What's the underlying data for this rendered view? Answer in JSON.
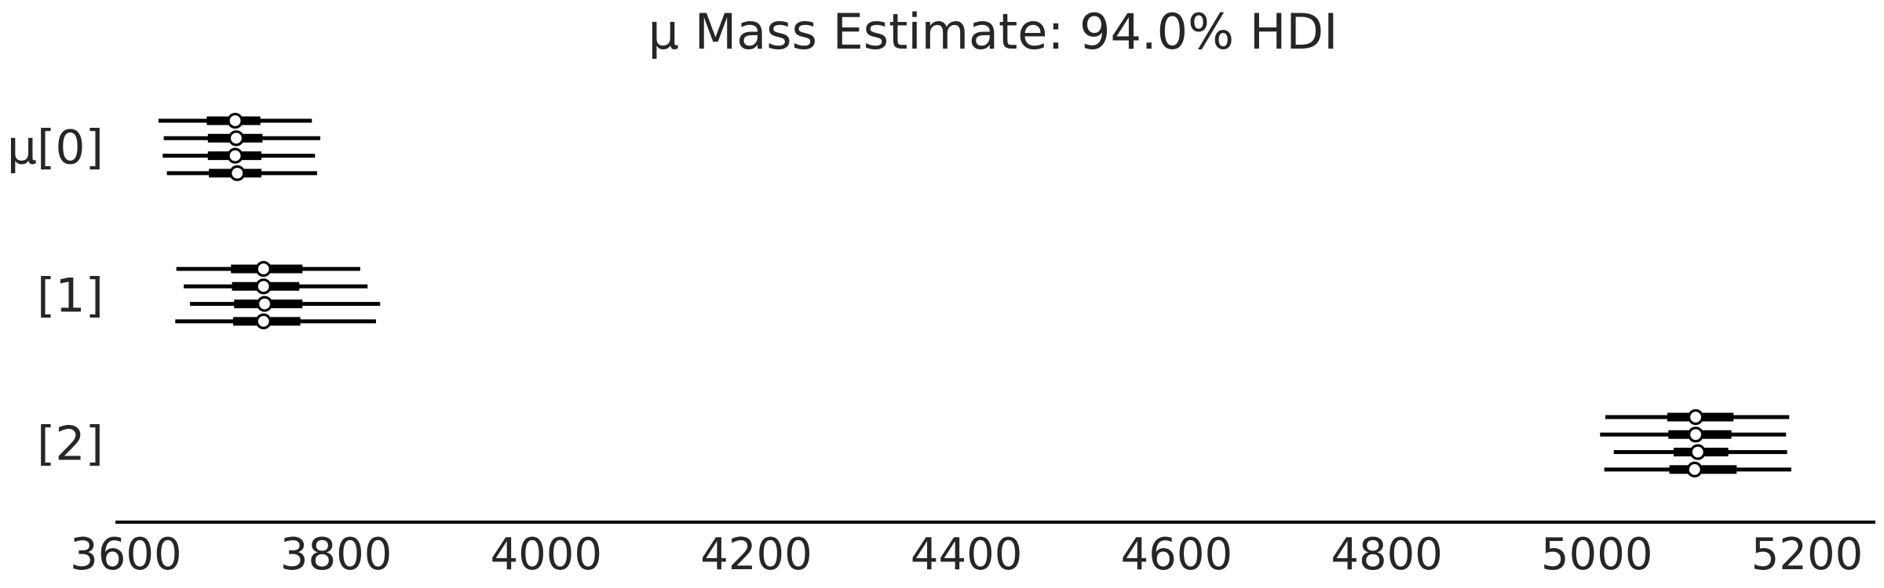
{
  "chart_data": {
    "type": "forest",
    "title": "μ Mass Estimate: 94.0% HDI",
    "xlabel": "",
    "ylabel": "",
    "xlim": [
      3590,
      5265
    ],
    "xticks": [
      3600,
      3800,
      4000,
      4200,
      4400,
      4600,
      4800,
      5000,
      5200
    ],
    "xtick_labels": [
      "3600",
      "3800",
      "4000",
      "4200",
      "4400",
      "4600",
      "4800",
      "5000",
      "5200"
    ],
    "grid": false,
    "legend": "none",
    "colors": {
      "line": "#000000",
      "marker_face": "#ffffff",
      "text": "#262626"
    },
    "groups": [
      {
        "label": "μ[0]",
        "chains": [
          {
            "hdi94": [
              3631,
              3777
            ],
            "iqr": [
              3677,
              3728
            ],
            "median": 3704
          },
          {
            "hdi94": [
              3636,
              3785
            ],
            "iqr": [
              3678,
              3730
            ],
            "median": 3705
          },
          {
            "hdi94": [
              3635,
              3780
            ],
            "iqr": [
              3678,
              3729
            ],
            "median": 3704
          },
          {
            "hdi94": [
              3639,
              3782
            ],
            "iqr": [
              3679,
              3729
            ],
            "median": 3706
          }
        ]
      },
      {
        "label": "[1]",
        "chains": [
          {
            "hdi94": [
              3648,
              3823
            ],
            "iqr": [
              3700,
              3768
            ],
            "median": 3731
          },
          {
            "hdi94": [
              3655,
              3830
            ],
            "iqr": [
              3701,
              3765
            ],
            "median": 3731
          },
          {
            "hdi94": [
              3661,
              3842
            ],
            "iqr": [
              3703,
              3768
            ],
            "median": 3732
          },
          {
            "hdi94": [
              3647,
              3838
            ],
            "iqr": [
              3702,
              3766
            ],
            "median": 3731
          }
        ]
      },
      {
        "label": "[2]",
        "chains": [
          {
            "hdi94": [
              5008,
              5183
            ],
            "iqr": [
              5067,
              5130
            ],
            "median": 5094
          },
          {
            "hdi94": [
              5003,
              5180
            ],
            "iqr": [
              5068,
              5128
            ],
            "median": 5094
          },
          {
            "hdi94": [
              5016,
              5181
            ],
            "iqr": [
              5073,
              5125
            ],
            "median": 5096
          },
          {
            "hdi94": [
              5007,
              5185
            ],
            "iqr": [
              5069,
              5133
            ],
            "median": 5093
          }
        ]
      }
    ]
  }
}
